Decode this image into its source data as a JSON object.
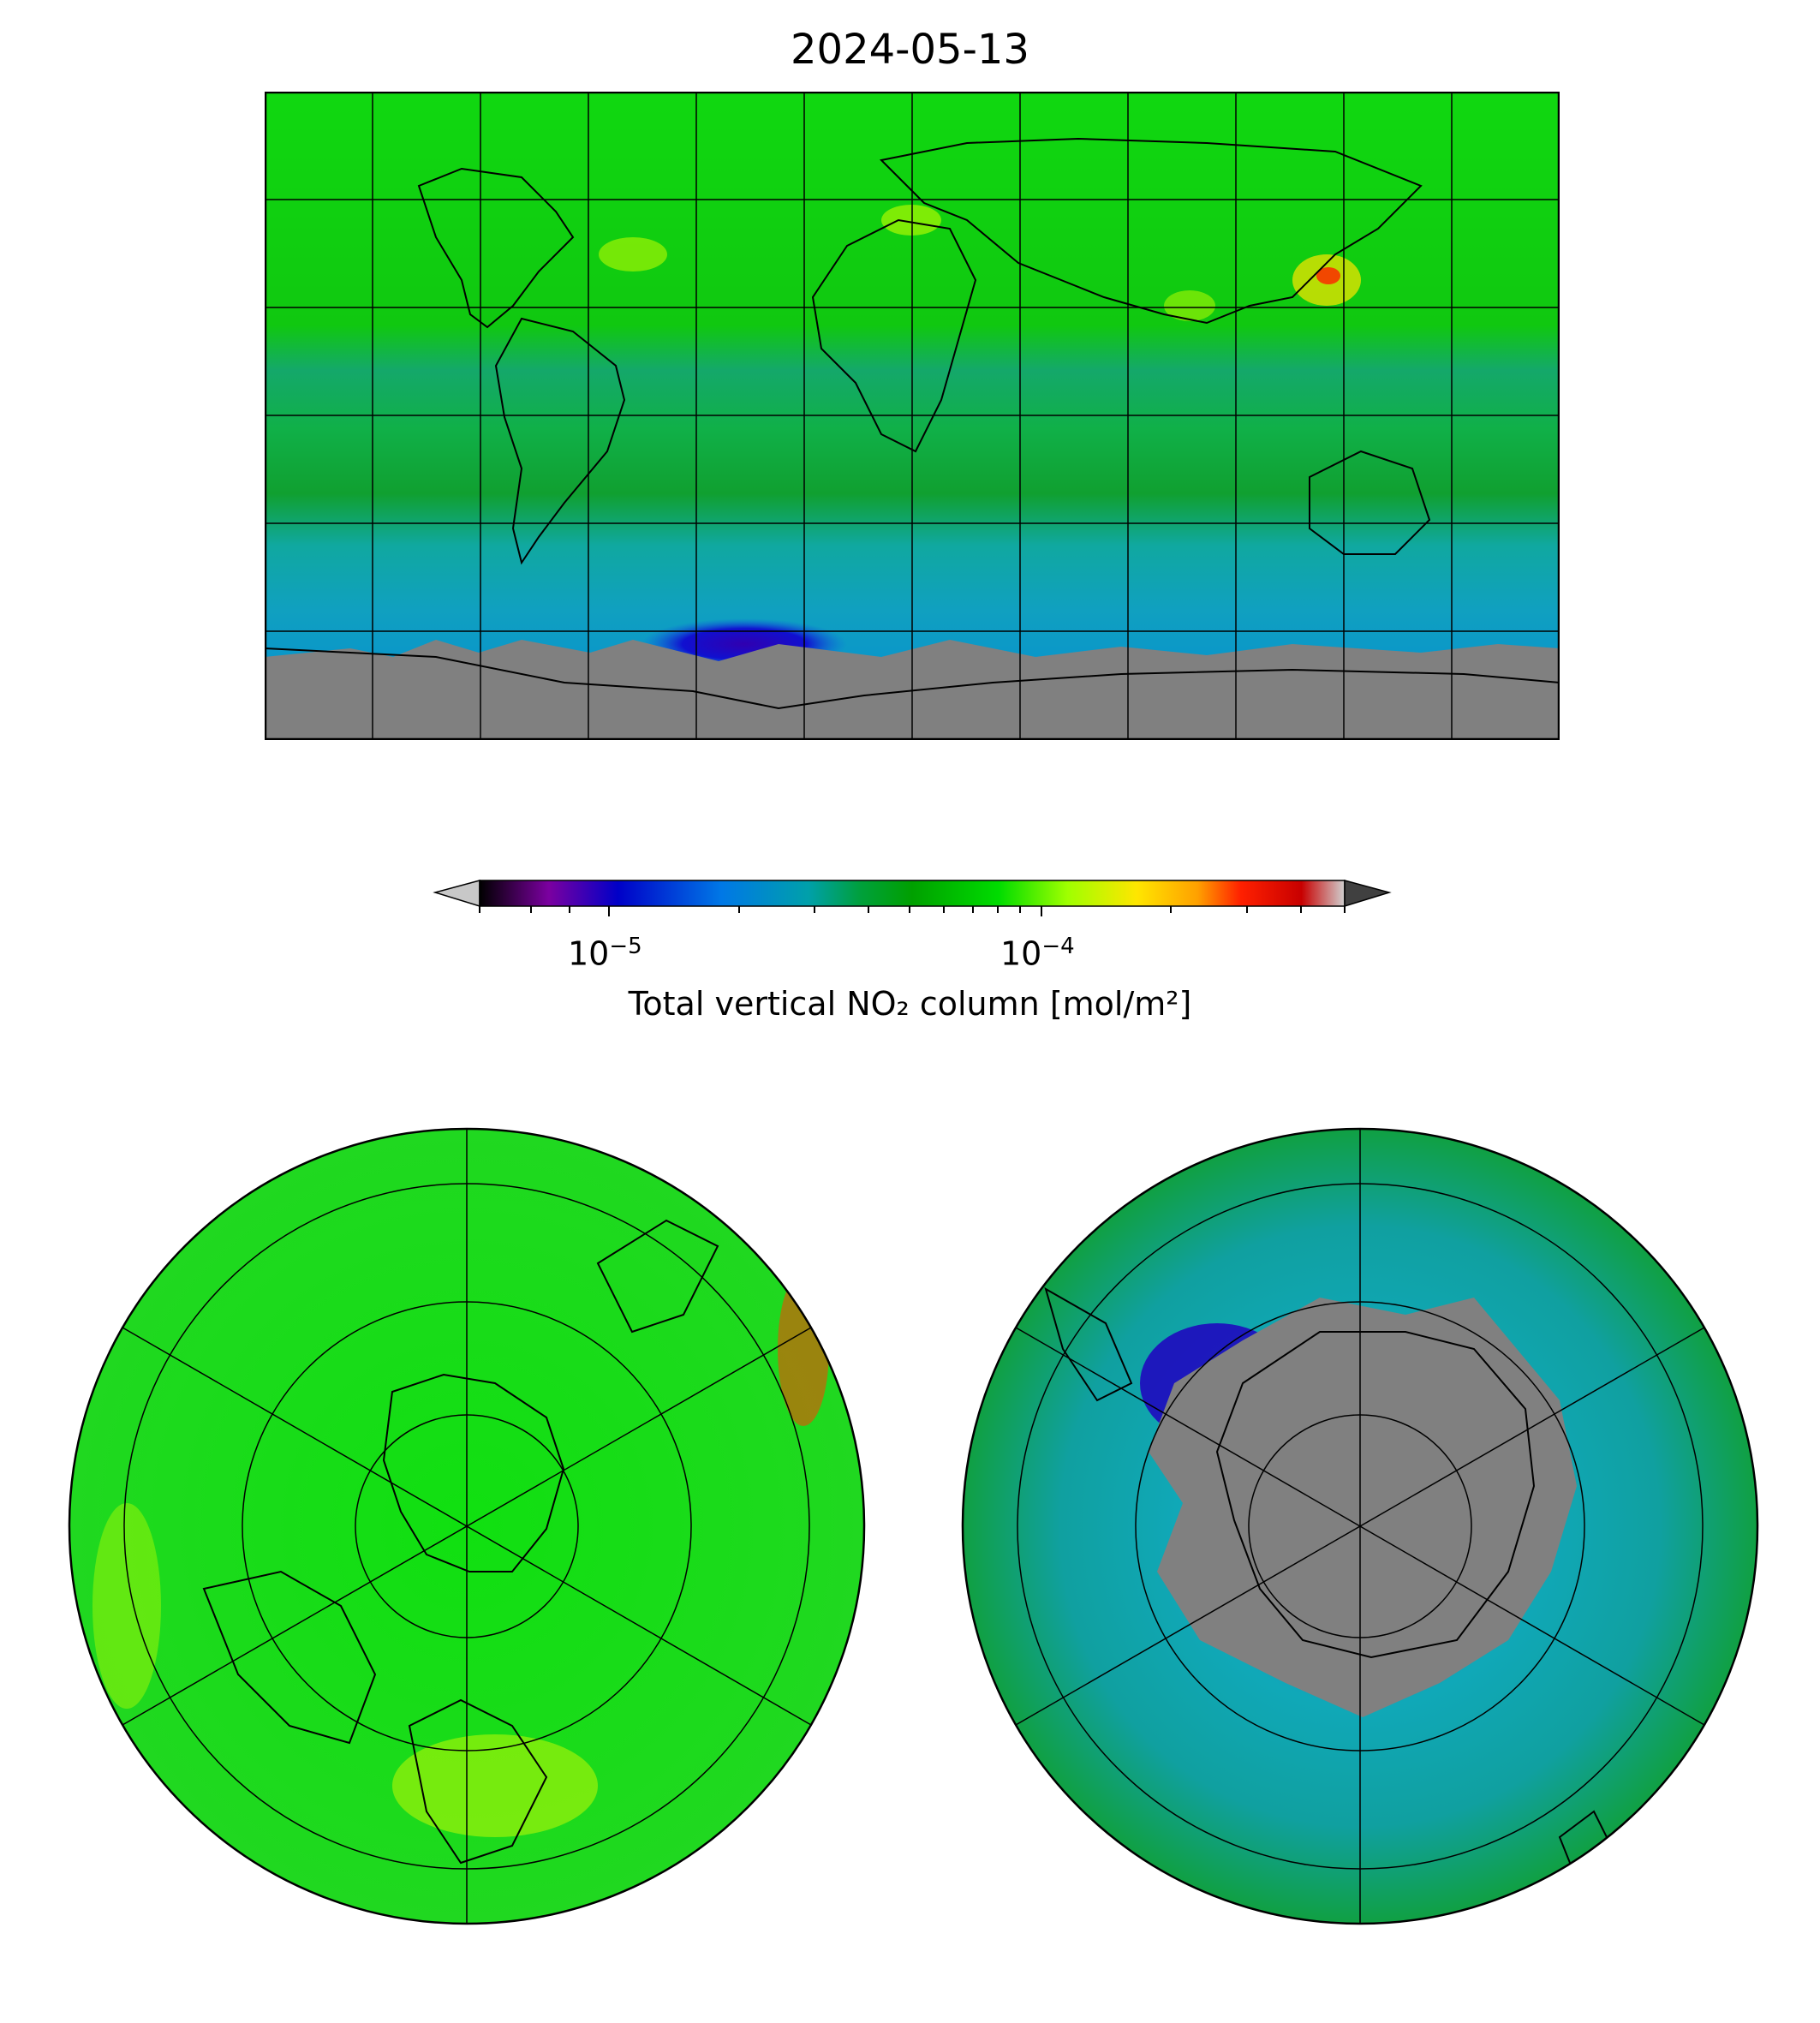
{
  "title": "2024-05-13",
  "colorbar": {
    "label": "Total vertical NO₂ column [mol/m²]",
    "scale": "log",
    "range": [
      5e-06,
      0.0005
    ],
    "extend": "both",
    "major_ticks": [
      {
        "value": 1e-05,
        "base": "10",
        "exp": "−5"
      },
      {
        "value": 0.0001,
        "base": "10",
        "exp": "−4"
      }
    ],
    "stops": [
      "#000000",
      "#7b00a0",
      "#0000c8",
      "#0078e6",
      "#00a0aa",
      "#00a03c",
      "#00a000",
      "#00dc00",
      "#a0ff00",
      "#ffe600",
      "#ffa000",
      "#ff2000",
      "#c80000",
      "#d0d0d0"
    ],
    "under_color": "#c8c8c8",
    "over_color": "#404040"
  },
  "panels": [
    {
      "name": "global-map",
      "projection": "plate-carree",
      "gridlines": true
    },
    {
      "name": "north-polar-map",
      "projection": "north-polar-stereographic",
      "gridlines": true
    },
    {
      "name": "south-polar-map",
      "projection": "south-polar-stereographic",
      "gridlines": true
    }
  ],
  "colors": {
    "background_field": "#00d000",
    "tropical_field": "#00a070",
    "southern_field": "#00a8a0",
    "no_data": "#808080",
    "coastline": "#000000"
  }
}
